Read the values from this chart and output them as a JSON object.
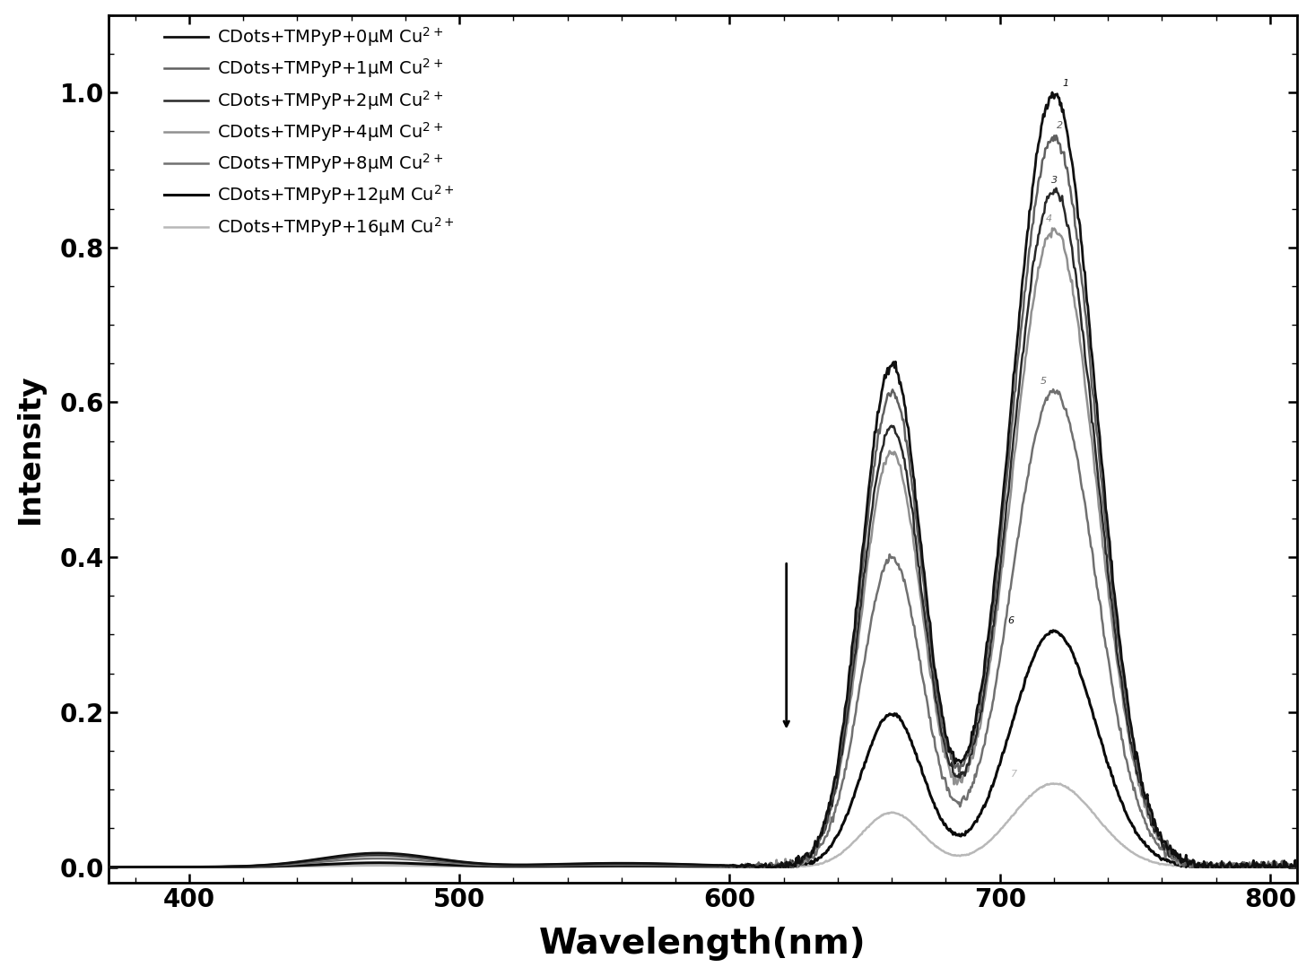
{
  "xlabel": "Wavelength(nm)",
  "ylabel": "Intensity",
  "xlim": [
    370,
    810
  ],
  "ylim": [
    -0.02,
    1.1
  ],
  "xticks": [
    400,
    500,
    600,
    700,
    800
  ],
  "yticks": [
    0.0,
    0.2,
    0.4,
    0.6,
    0.8,
    1.0
  ],
  "legend_labels": [
    "CDots+TMPyP+0μM Cu$^{2+}$",
    "CDots+TMPyP+1μM Cu$^{2+}$",
    "CDots+TMPyP+2μM Cu$^{2+}$",
    "CDots+TMPyP+4μM Cu$^{2+}$",
    "CDots+TMPyP+8μM Cu$^{2+}$",
    "CDots+TMPyP+12μM Cu$^{2+}$",
    "CDots+TMPyP+16μM Cu$^{2+}$"
  ],
  "line_colors": [
    "#101010",
    "#606060",
    "#282828",
    "#909090",
    "#707070",
    "#0a0a0a",
    "#b8b8b8"
  ],
  "line_widths": [
    2.0,
    1.8,
    1.8,
    1.8,
    1.8,
    2.2,
    1.8
  ],
  "peak_scales": [
    1.0,
    0.945,
    0.875,
    0.825,
    0.615,
    0.305,
    0.108
  ],
  "background_color": "#ffffff",
  "figure_size": [
    14.66,
    10.88
  ],
  "dpi": 100
}
